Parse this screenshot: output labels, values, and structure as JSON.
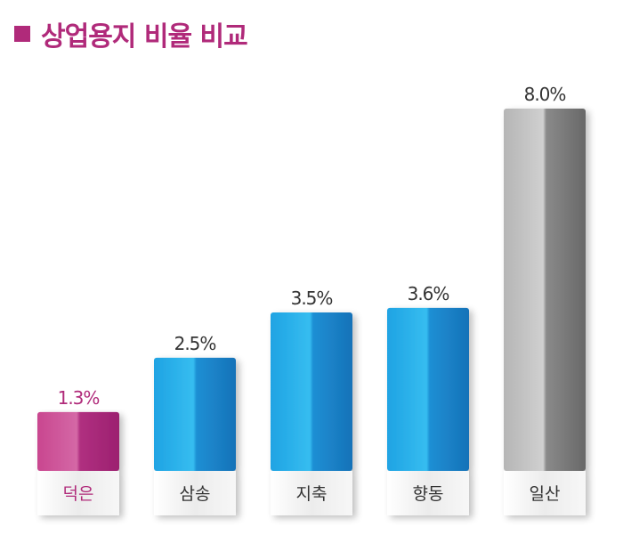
{
  "title": "상업용지 비율 비교",
  "colors": {
    "accent": "#b02a7a",
    "magenta_light": "#d05aa0",
    "magenta_dark": "#a82476",
    "blue_light": "#29b4ea",
    "blue_dark": "#1a78bd",
    "gray_light": "#c9c9c9",
    "gray_dark": "#6a6a6a",
    "label_text": "#333333"
  },
  "chart_data": {
    "type": "bar",
    "categories": [
      "덕은",
      "삼송",
      "지축",
      "향동",
      "일산"
    ],
    "values": [
      1.3,
      2.5,
      3.5,
      3.6,
      8.0
    ],
    "value_labels": [
      "1.3%",
      "2.5%",
      "3.5%",
      "3.6%",
      "8.0%"
    ],
    "bar_colors": [
      "magenta",
      "blue",
      "blue",
      "blue",
      "gray"
    ],
    "title": "상업용지 비율 비교",
    "xlabel": "",
    "ylabel": "",
    "ylim": [
      0,
      8.0
    ],
    "grid": false,
    "legend": "none"
  }
}
